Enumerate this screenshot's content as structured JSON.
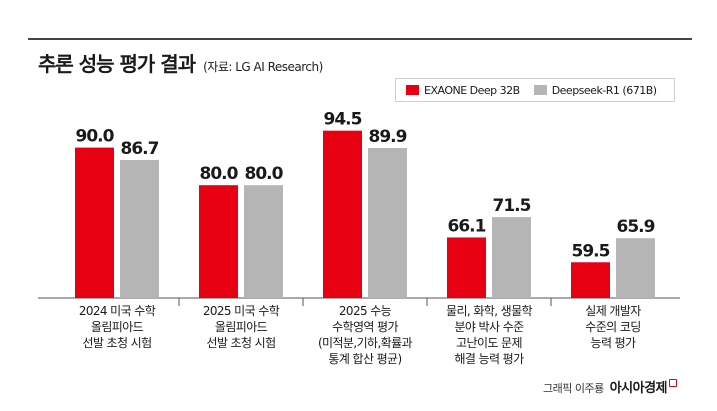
{
  "header": {
    "title": "추론 성능 평가 결과",
    "source": "(자료: LG AI Research)"
  },
  "footer": {
    "credit": "그래픽 이주룡",
    "brand": "아시아경제"
  },
  "colors": {
    "exaone": "#e60012",
    "deepseek": "#b5b5b5"
  },
  "chart_data": {
    "type": "bar",
    "title": "추론 성능 평가 결과",
    "xlabel": "",
    "ylabel": "",
    "ylim": [
      50,
      100
    ],
    "grid": false,
    "legend": "top-right",
    "categories": [
      [
        "2024 미국 수학",
        "올림피아드",
        "선발 초청 시험"
      ],
      [
        "2025 미국 수학",
        "올림피아드",
        "선발 초청 시험"
      ],
      [
        "2025 수능",
        "수학영역 평가",
        "(미적분,기하,확률과",
        "통계 합산 평균)"
      ],
      [
        "물리, 화학, 생물학",
        "분야 박사 수준",
        "고난이도 문제",
        "해결 능력 평가"
      ],
      [
        "실제 개발자",
        "수준의 코딩",
        "능력 평가"
      ]
    ],
    "series": [
      {
        "name": "EXAONE Deep 32B",
        "values": [
          90.0,
          80.0,
          94.5,
          66.1,
          59.5
        ],
        "labels": [
          "90.0",
          "80.0",
          "94.5",
          "66.1",
          "59.5"
        ]
      },
      {
        "name": "Deepseek-R1 (671B)",
        "values": [
          86.7,
          80.0,
          89.9,
          71.5,
          65.9
        ],
        "labels": [
          "86.7",
          "80.0",
          "89.9",
          "71.5",
          "65.9"
        ]
      }
    ]
  }
}
